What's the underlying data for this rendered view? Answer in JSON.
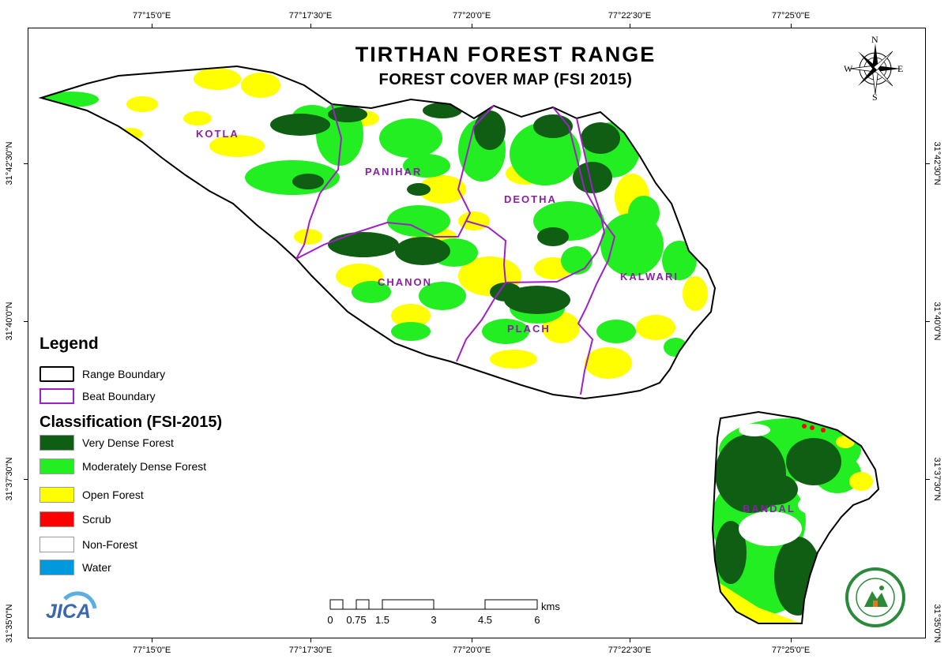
{
  "title": {
    "line1": "TIRTHAN FOREST RANGE",
    "line2": "FOREST COVER MAP (FSI 2015)"
  },
  "coordinates": {
    "longitudes": [
      "77°15'0\"E",
      "77°17'30\"E",
      "77°20'0\"E",
      "77°22'30\"E",
      "77°25'0\"E"
    ],
    "latitudes": [
      "31°42'30\"N",
      "31°40'0\"N",
      "31°37'30\"N",
      "31°35'0\"N"
    ]
  },
  "beats": [
    "KOTLA",
    "PANIHAR",
    "DEOTHA",
    "CHANON",
    "KALWARI",
    "PLACH",
    "BANDAL"
  ],
  "legend": {
    "title": "Legend",
    "boundaries": [
      {
        "label": "Range Boundary",
        "color": "#000000"
      },
      {
        "label": "Beat Boundary",
        "color": "#a020c8"
      }
    ],
    "classification_title": "Classification (FSI-2015)",
    "classes": [
      {
        "label": "Very Dense Forest",
        "color": "#0f5e13"
      },
      {
        "label": "Moderately Dense Forest",
        "color": "#22ee22"
      },
      {
        "label": "Open Forest",
        "color": "#ffff00"
      },
      {
        "label": "Scrub",
        "color": "#ff0000"
      },
      {
        "label": "Non-Forest",
        "color": "#ffffff"
      },
      {
        "label": "Water",
        "color": "#0099dd"
      }
    ]
  },
  "scale_bar": {
    "labels": [
      "0",
      "0.75",
      "1.5",
      "3",
      "4.5",
      "6"
    ],
    "unit": "kms"
  },
  "compass": {
    "n": "N",
    "s": "S",
    "e": "E",
    "w": "W"
  },
  "logos": {
    "jica": "JICA"
  }
}
